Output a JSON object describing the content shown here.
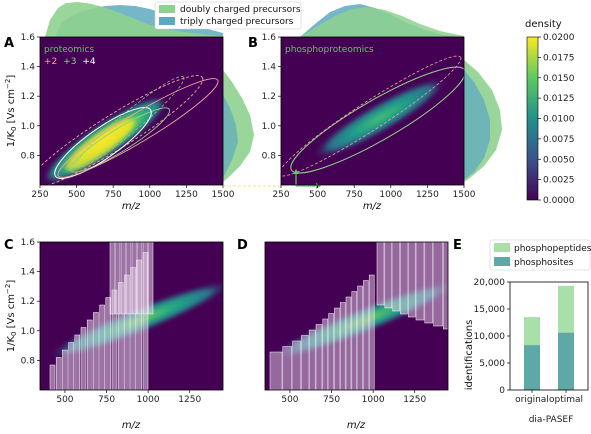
{
  "legend_top": [
    {
      "label": "doubly charged precursors",
      "color": "#8fd18f"
    },
    {
      "label": "triply charged precursors",
      "color": "#5ea9bf"
    }
  ],
  "colorbar": {
    "label": "density",
    "min": 0,
    "max": 0.02,
    "ticks": [
      "0.0200",
      "0.0175",
      "0.0150",
      "0.0125",
      "0.0100",
      "0.0075",
      "0.0050",
      "0.0025",
      "0.0000"
    ],
    "colors": [
      "#440154",
      "#3b528b",
      "#21918c",
      "#5ec962",
      "#fde725"
    ]
  },
  "panels": {
    "A": {
      "letter": "A",
      "inset_title": "proteomics",
      "charge_labels": [
        "+2",
        "+3",
        "+4"
      ],
      "charge_colors": [
        "#f2a1a1",
        "#8fd18f",
        "#ffffff"
      ]
    },
    "B": {
      "letter": "B",
      "inset_title": "phosphoproteomics"
    },
    "C": {
      "letter": "C"
    },
    "D": {
      "letter": "D"
    },
    "E": {
      "letter": "E"
    }
  },
  "axes": {
    "xlabel": "m/z",
    "ylabel": "1/K0 [Vs cm−2]",
    "ylabel_main": "1/K",
    "ylabel_sub": "0",
    "ylabel_rest": " [Vs cm",
    "ylabel_sup": "−2",
    "ylabel_close": "]",
    "top_xticks": [
      "250",
      "500",
      "750",
      "1000",
      "1250",
      "1500"
    ],
    "top_xticks_b": [
      "250",
      "500",
      "750",
      "1000",
      "1250",
      "1500"
    ],
    "bottom_xticks": [
      "500",
      "750",
      "1000",
      "1250"
    ],
    "yticks": [
      "0.8",
      "1.0",
      "1.2",
      "1.4",
      "1.6"
    ]
  },
  "chart_data": [
    {
      "type": "heatmap",
      "panel": "A",
      "title": "proteomics",
      "xlabel": "m/z",
      "ylabel": "1/K0 [Vs cm−2]",
      "xlim": [
        250,
        1500
      ],
      "ylim": [
        0.6,
        1.6
      ],
      "annotations": [
        "+2",
        "+3",
        "+4"
      ]
    },
    {
      "type": "heatmap",
      "panel": "B",
      "title": "phosphoproteomics",
      "xlabel": "m/z",
      "ylabel": "1/K0 [Vs cm−2]",
      "xlim": [
        250,
        1500
      ],
      "ylim": [
        0.6,
        1.6
      ]
    },
    {
      "type": "heatmap",
      "panel": "C",
      "xlabel": "m/z",
      "ylabel": "1/K0 [Vs cm−2]",
      "xlim": [
        350,
        1450
      ],
      "ylim": [
        0.6,
        1.6
      ]
    },
    {
      "type": "heatmap",
      "panel": "D",
      "xlabel": "m/z",
      "xlim": [
        350,
        1450
      ],
      "ylim": [
        0.6,
        1.6
      ]
    },
    {
      "type": "bar",
      "panel": "E",
      "categories": [
        "original",
        "optimal"
      ],
      "xlabel": "dia-PASEF",
      "ylabel": "identifications",
      "ylim": [
        0,
        20000
      ],
      "yticks": [
        "0",
        "5,000",
        "10,000",
        "15,000",
        "20,000"
      ],
      "series": [
        {
          "name": "phosphosites",
          "values": [
            8300,
            10600
          ],
          "color": "#5ea9a6"
        },
        {
          "name": "phosphopeptides",
          "values": [
            13500,
            19300
          ],
          "color": "#a8e0a8"
        }
      ]
    }
  ]
}
